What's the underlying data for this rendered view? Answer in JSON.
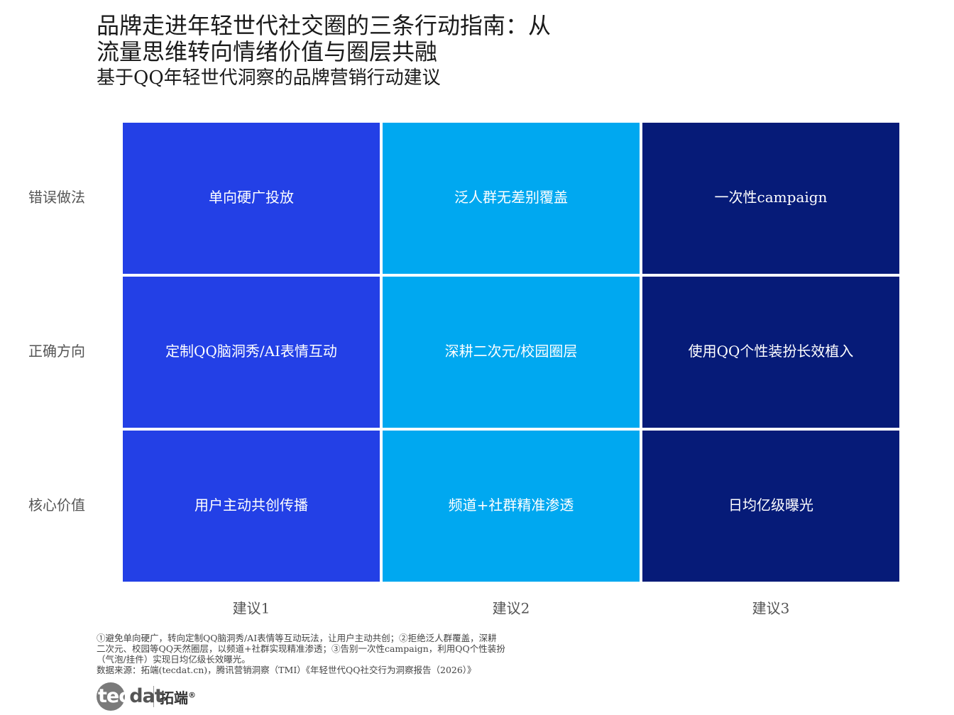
{
  "title_lines": [
    "品牌走进年轻世代社交圈的三条行动指南：从",
    "流量思维转向情绪价值与圈层共融"
  ],
  "subtitle": "基于QQ年轻世代洞察的品牌营销行动建议",
  "chart_data": {
    "type": "heatmap",
    "rows": [
      "错误做法",
      "正确方向",
      "核心价值"
    ],
    "columns": [
      "建议1",
      "建议2",
      "建议3"
    ],
    "cells": [
      [
        "单向硬广投放",
        "泛人群无差别覆盖",
        "一次性campaign"
      ],
      [
        "定制QQ脑洞秀/AI表情互动",
        "深耕二次元/校园圈层",
        "使用QQ个性装扮长效植入"
      ],
      [
        "用户主动共创传播",
        "频道+社群精准渗透",
        "日均亿级曝光"
      ]
    ],
    "column_colors": [
      "#2340e6",
      "#00a8f0",
      "#061b78"
    ],
    "cell_text_color": "#ffffff",
    "label_color": "#555555"
  },
  "notes": [
    "①避免单向硬广，转向定制QQ脑洞秀/AI表情等互动玩法，让用户主动共创；②拒绝泛人群覆盖，深耕",
    "二次元、校园等QQ天然圈层，以频道+社群实现精准渗透；③告别一次性campaign，利用QQ个性装扮",
    "（气泡/挂件）实现日均亿级长效曝光。",
    "数据来源：拓端(tecdat.cn)，腾讯营销洞察（TMI）《年轻世代QQ社交行为洞察报告（2026）》"
  ],
  "logo": {
    "mark_prefix": "tec",
    "mark_suffix": "dat",
    "cn": "拓端",
    "reg": "®"
  }
}
